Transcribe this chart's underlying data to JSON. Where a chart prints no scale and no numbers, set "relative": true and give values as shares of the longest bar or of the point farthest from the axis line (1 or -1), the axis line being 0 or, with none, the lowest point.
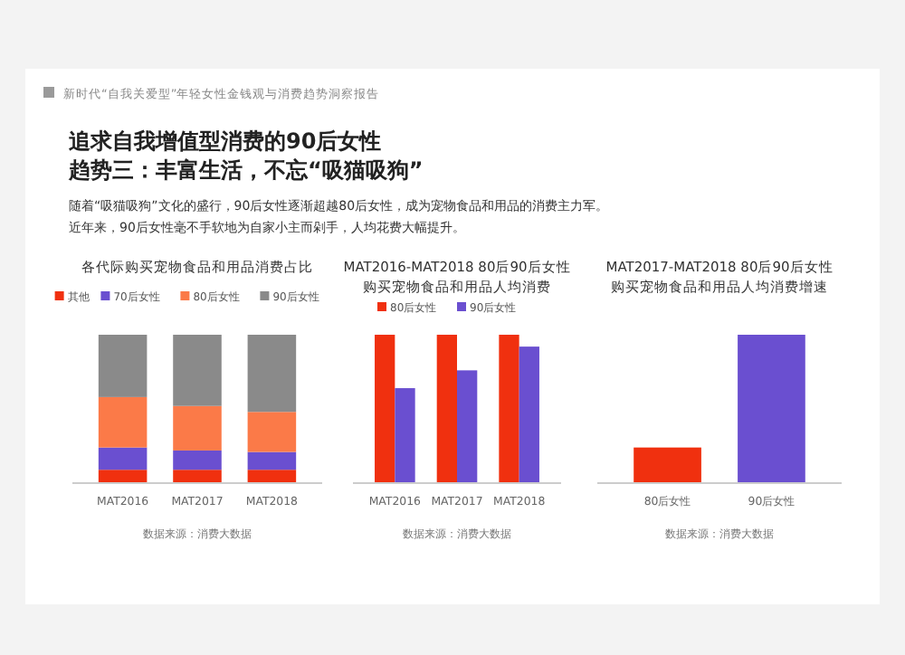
{
  "chart_data": [
    {
      "type": "other",
      "title": "追求自我增值型消费的90后女性",
      "subtitle": "趋势三：丰富生活，不忘“吸猫吸狗”",
      "annotations": [
        "新时代“自我关爱型”年轻女性金钱观与消费趋势洞察报告",
        "随着“吸猫吸狗”文化的盛行，90后女性逐渐超越80后女性，成为宠物食品和用品的消费主力军。",
        "近年来，90后女性毫不手软地为自家小主而剁手，人均花费大幅提升。"
      ]
    },
    {
      "type": "bar",
      "title": "各代际购买宠物食品和用品消费占比",
      "categories": [
        "MAT2016",
        "MAT2017",
        "MAT2018"
      ],
      "relative": true,
      "stacked": true,
      "legend": "top",
      "annotations": [
        "数据来源：消费大数据"
      ],
      "series": [
        {
          "name": "其他",
          "color": "#f0300f",
          "values": [
            0.09,
            0.09,
            0.09
          ]
        },
        {
          "name": "70后女性",
          "color": "#6a4fd0",
          "values": [
            0.15,
            0.13,
            0.12
          ]
        },
        {
          "name": "80后女性",
          "color": "#fb7a48",
          "values": [
            0.34,
            0.3,
            0.27
          ]
        },
        {
          "name": "90后女性",
          "color": "#8a8a8a",
          "values": [
            0.42,
            0.48,
            0.52
          ]
        }
      ]
    },
    {
      "type": "bar",
      "title": "MAT2016-MAT2018 80后90后女性",
      "subtitle": "购买宠物食品和用品人均消费",
      "categories": [
        "MAT2016",
        "MAT2017",
        "MAT2018"
      ],
      "relative": true,
      "legend": "top",
      "annotations": [
        "数据来源：消费大数据"
      ],
      "series": [
        {
          "name": "80后女性",
          "color": "#f0300f",
          "values": [
            1,
            1,
            1
          ]
        },
        {
          "name": "90后女性",
          "color": "#6a4fd0",
          "values": [
            0.64,
            0.76,
            0.92
          ]
        }
      ]
    },
    {
      "type": "bar",
      "title": "MAT2017-MAT2018 80后90后女性",
      "subtitle": "购买宠物食品和用品人均消费增速",
      "categories": [
        "80后女性",
        "90后女性"
      ],
      "relative": true,
      "annotations": [
        "数据来源：消费大数据"
      ],
      "values": [
        0.24,
        1
      ],
      "colors": [
        "#f0300f",
        "#6a4fd0"
      ]
    }
  ]
}
